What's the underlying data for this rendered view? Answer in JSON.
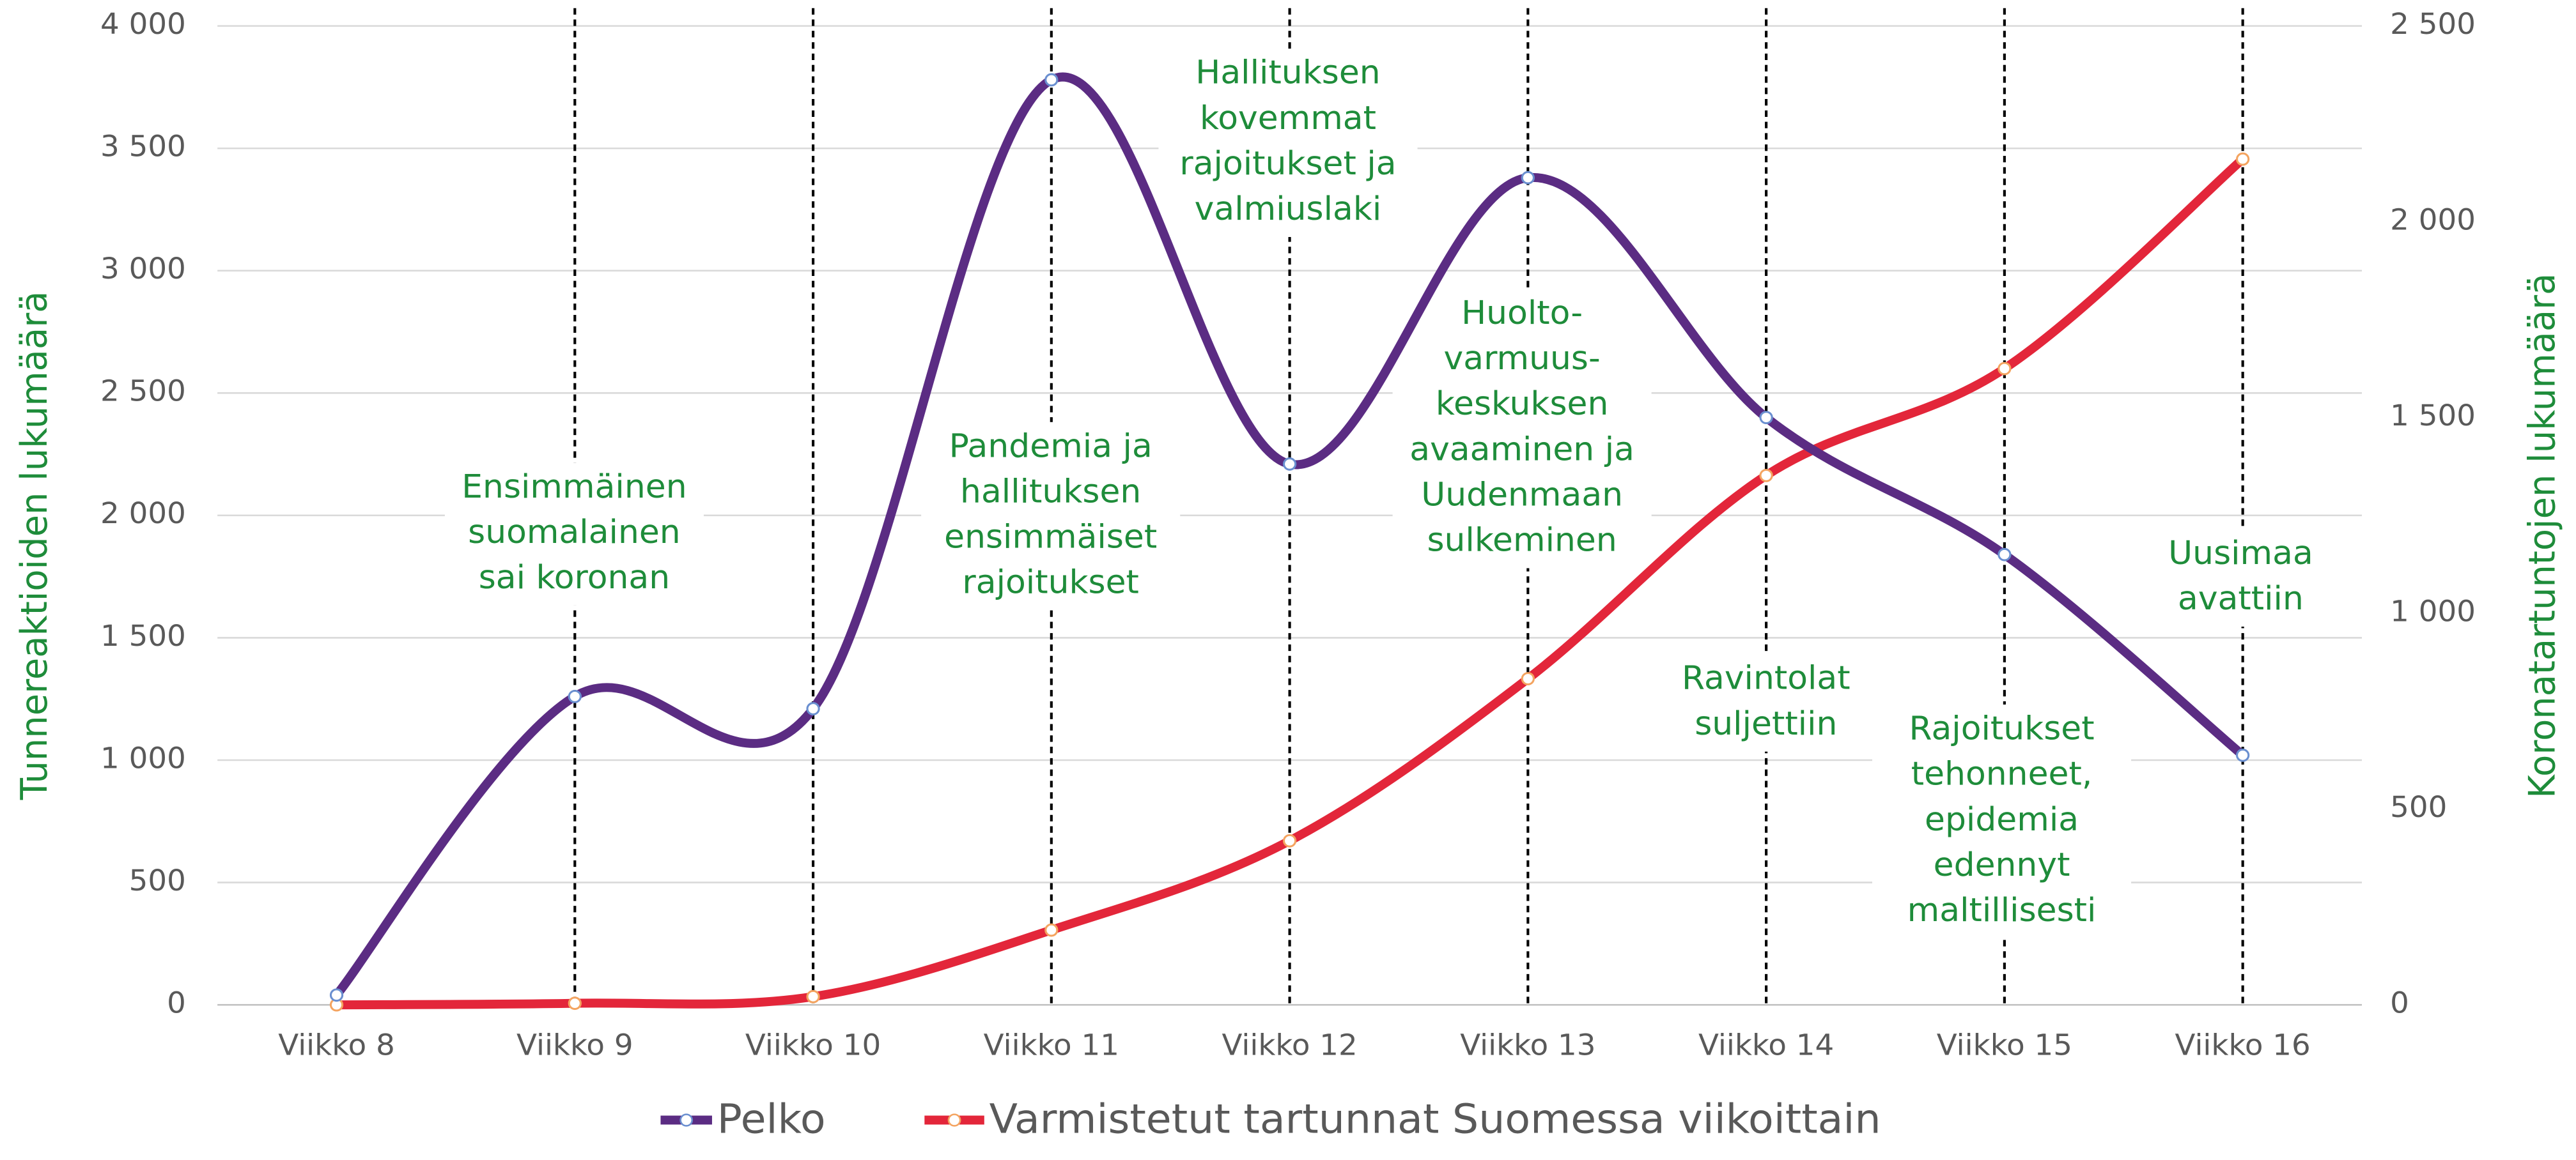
{
  "chart_data": {
    "type": "line",
    "categories": [
      "Viikko 8",
      "Viikko 9",
      "Viikko 10",
      "Viikko 11",
      "Viikko 12",
      "Viikko 13",
      "Viikko 14",
      "Viikko 15",
      "Viikko 16"
    ],
    "series": [
      {
        "name": "Pelko",
        "color": "#5b2c83",
        "values": [
          40,
          1260,
          1210,
          3780,
          2210,
          3380,
          2400,
          1840,
          1020
        ]
      },
      {
        "name": "Varmistetut tartunnat Suomessa viikoittain",
        "color": "#e3263a",
        "axis": "y2",
        "values": [
          0,
          4,
          21,
          191,
          419,
          833,
          1352,
          1625,
          2160
        ]
      }
    ],
    "ylabel": "Tunnereaktioiden lukumäärä",
    "y2label": "Koronatartuntojen lukumäärä",
    "ylim": [
      0,
      4000
    ],
    "yticks": [
      0,
      500,
      {
        "value": 1000,
        "label": "1 000"
      },
      {
        "value": 1500,
        "label": "1 500"
      },
      {
        "value": 2000,
        "label": "2 000"
      },
      {
        "value": 2500,
        "label": "2 500"
      },
      {
        "value": 3000,
        "label": "3 000"
      },
      {
        "value": 3500,
        "label": "3 500"
      },
      {
        "value": 4000,
        "label": "4 000"
      }
    ],
    "y2lim": [
      0,
      2500
    ],
    "y2ticks": [
      0,
      500,
      {
        "value": 1000,
        "label": "1 000"
      },
      {
        "value": 1500,
        "label": "1 500"
      },
      {
        "value": 2000,
        "label": "2 000"
      },
      {
        "value": 2500,
        "label": "2 500"
      }
    ],
    "grid": true,
    "legend": "bottom",
    "annotations": [
      [
        "Ensimmäinen",
        "suomalainen",
        "sai koronan"
      ],
      [
        "Pandemia ja",
        "hallituksen",
        "ensimmäiset",
        "rajoitukset"
      ],
      [
        "Hallituksen",
        "kovemmat",
        "rajoitukset ja",
        "valmiuslaki"
      ],
      [
        "Huolto-",
        "varmuus-",
        "keskuksen",
        "avaaminen ja",
        "Uudenmaan",
        "sulkeminen"
      ],
      [
        "Ravintolat",
        "suljettiin"
      ],
      [
        "Rajoitukset",
        "tehonneet,",
        "epidemia",
        "edennyt",
        "maltillisesti"
      ],
      [
        "Uusimaa",
        "avattiin"
      ]
    ]
  }
}
